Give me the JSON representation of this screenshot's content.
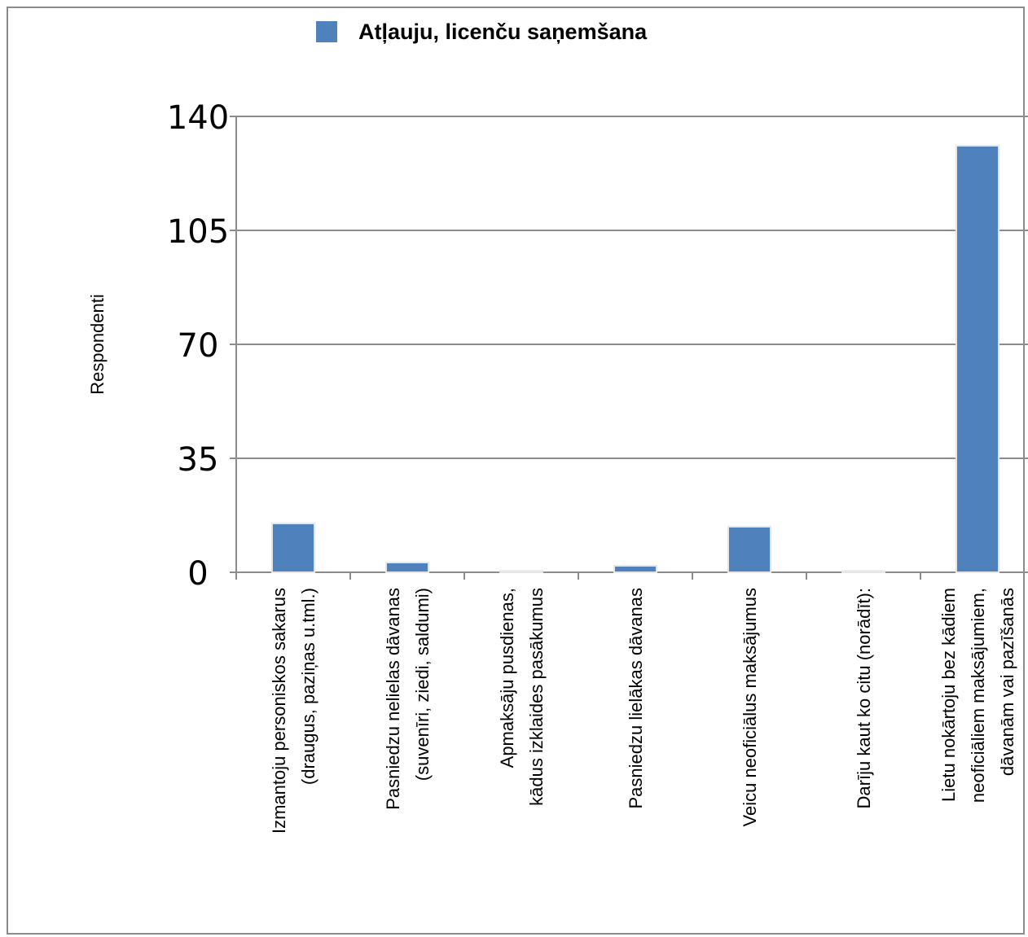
{
  "colors": {
    "bar": "#4f81bd",
    "grid": "#8c8c8c",
    "axis": "#8c8c8c"
  },
  "chart_data": {
    "type": "bar",
    "title": "",
    "xlabel": "",
    "ylabel": "Respondenti",
    "ylim": [
      0,
      140
    ],
    "yticks": [
      "0",
      "35",
      "70",
      "105",
      "140"
    ],
    "grid": true,
    "legend": "top-center",
    "categories": [
      [
        "Izmantoju personiskos sakarus",
        "(draugus, paziņas u.tml.)"
      ],
      [
        "Pasniedzu nelielas dāvanas",
        "(suvenīri, ziedi, saldumi)"
      ],
      [
        "Apmaksāju pusdienas,",
        "kādus izklaides pasākumus"
      ],
      [
        "Pasniedzu lielākas dāvanas"
      ],
      [
        "Veicu neoficiālus maksājumus"
      ],
      [
        "Darīju kaut ko citu (norādīt):"
      ],
      [
        "Lietu nokārtoju bez kādiem",
        "neoficiāliem maksājumiem,",
        "dāvanām vai pazīšanās"
      ]
    ],
    "series": [
      {
        "name": "Atļauju, licenču saņemšana",
        "values": [
          15,
          3,
          0,
          2,
          14,
          0,
          131
        ]
      }
    ]
  }
}
